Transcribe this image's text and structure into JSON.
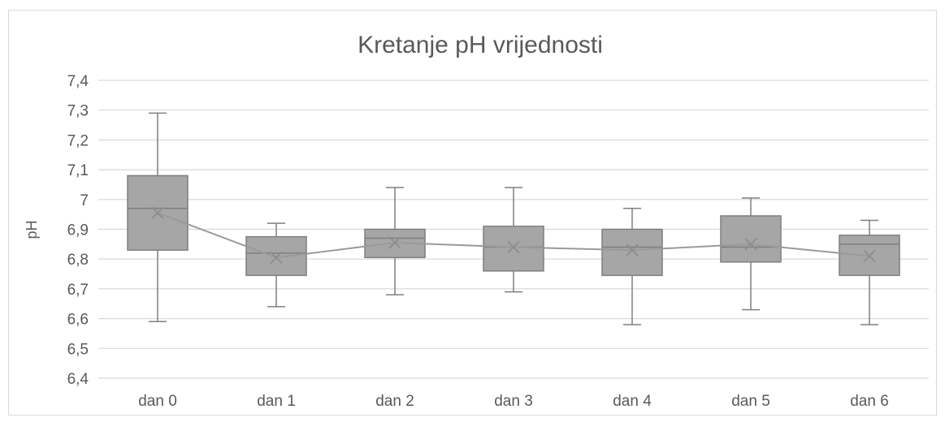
{
  "chart_data": {
    "type": "box",
    "title": "Kretanje pH vrijednosti",
    "ylabel": "pH",
    "xlabel": "",
    "ylim": [
      6.4,
      7.4
    ],
    "yticks": [
      6.4,
      6.5,
      6.6,
      6.7,
      6.8,
      6.9,
      7.0,
      7.1,
      7.2,
      7.3,
      7.4
    ],
    "ytick_labels": [
      "6,4",
      "6,5",
      "6,6",
      "6,7",
      "6,8",
      "6,9",
      "7",
      "7,1",
      "7,2",
      "7,3",
      "7,4"
    ],
    "grid": true,
    "categories": [
      "dan 0",
      "dan 1",
      "dan 2",
      "dan 3",
      "dan 4",
      "dan 5",
      "dan 6"
    ],
    "boxes": [
      {
        "min": 6.59,
        "q1": 6.83,
        "median": 6.97,
        "q3": 7.08,
        "max": 7.29,
        "mean": 6.955
      },
      {
        "min": 6.64,
        "q1": 6.745,
        "median": 6.82,
        "q3": 6.875,
        "max": 6.92,
        "mean": 6.805
      },
      {
        "min": 6.68,
        "q1": 6.805,
        "median": 6.87,
        "q3": 6.9,
        "max": 7.04,
        "mean": 6.855
      },
      {
        "min": 6.69,
        "q1": 6.76,
        "median": 6.84,
        "q3": 6.91,
        "max": 7.04,
        "mean": 6.84
      },
      {
        "min": 6.58,
        "q1": 6.745,
        "median": 6.84,
        "q3": 6.9,
        "max": 6.97,
        "mean": 6.83
      },
      {
        "min": 6.63,
        "q1": 6.79,
        "median": 6.84,
        "q3": 6.945,
        "max": 7.005,
        "mean": 6.85
      },
      {
        "min": 6.58,
        "q1": 6.745,
        "median": 6.85,
        "q3": 6.88,
        "max": 6.93,
        "mean": 6.81
      }
    ],
    "mean_line": true,
    "colors": {
      "box_fill": "#a6a6a6",
      "box_stroke": "#7f7f7f",
      "grid": "#d9d9d9",
      "text": "#595959",
      "mean_line": "#9a9a9a"
    }
  }
}
